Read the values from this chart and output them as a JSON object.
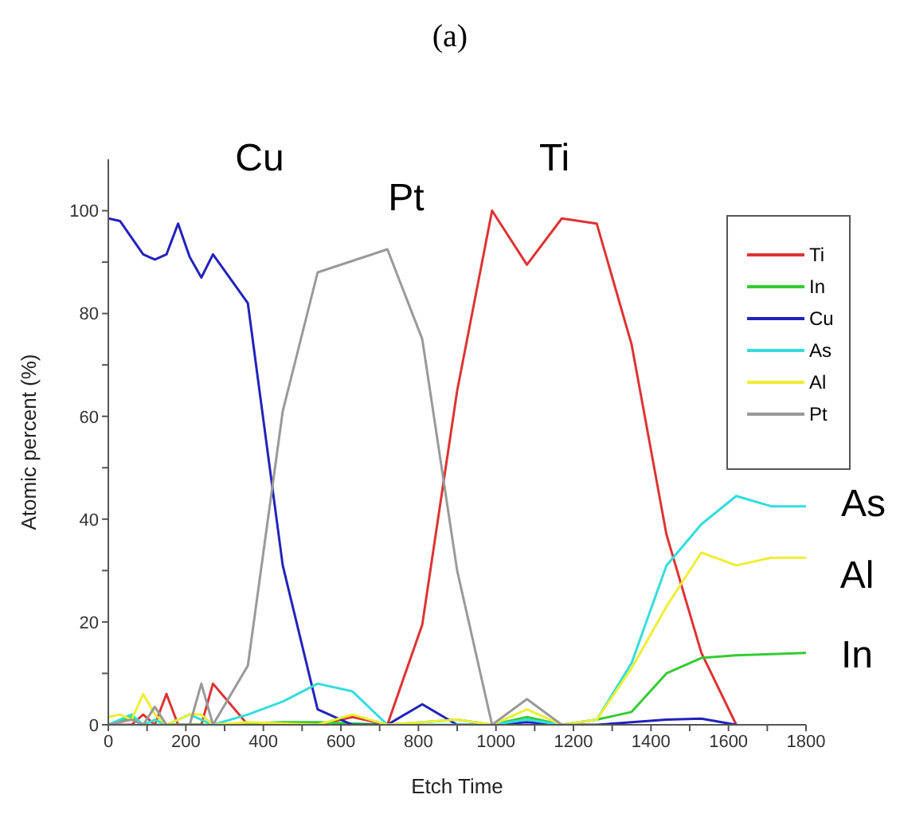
{
  "chart_data": {
    "type": "line",
    "title": "(a)",
    "xlabel": "Etch Time",
    "ylabel": "Atomic percent (%)",
    "xlim": [
      0,
      1800
    ],
    "xticks": [
      0,
      {
        "value": 100,
        "label": null
      },
      200,
      {
        "value": 300,
        "label": null
      },
      400,
      {
        "value": 500,
        "label": null
      },
      600,
      {
        "value": 700,
        "label": null
      },
      800,
      {
        "value": 900,
        "label": null
      },
      1000,
      {
        "value": 1100,
        "label": null
      },
      1200,
      {
        "value": 1300,
        "label": null
      },
      1400,
      {
        "value": 1500,
        "label": null
      },
      1600,
      {
        "value": 1700,
        "label": null
      },
      1800
    ],
    "ylim": [
      0,
      110
    ],
    "yticks": [
      0,
      {
        "value": 10,
        "label": null
      },
      20,
      {
        "value": 30,
        "label": null
      },
      40,
      {
        "value": 50,
        "label": null
      },
      60,
      {
        "value": 70,
        "label": null
      },
      80,
      {
        "value": 90,
        "label": null
      },
      100
    ],
    "grid": false,
    "legend": "top right",
    "marker": "none",
    "line_style": "solid",
    "series": [
      {
        "name": "Ti",
        "color": "#dd3333",
        "x": [
          0,
          60,
          90,
          120,
          150,
          180,
          240,
          270,
          360,
          540,
          630,
          720,
          810,
          900,
          990,
          1080,
          1170,
          1260,
          1350,
          1440,
          1530,
          1620
        ],
        "values": [
          0,
          0,
          2,
          0,
          6,
          0,
          0,
          8,
          0,
          0,
          1.5,
          0,
          19.5,
          65,
          100,
          89.5,
          98.5,
          97.5,
          74,
          37,
          14,
          0
        ]
      },
      {
        "name": "In",
        "color": "#33cc33",
        "x": [
          0,
          60,
          90,
          180,
          270,
          450,
          540,
          720,
          900,
          990,
          1080,
          1170,
          1260,
          1350,
          1440,
          1530,
          1620,
          1800
        ],
        "values": [
          0,
          1.5,
          0,
          0,
          0,
          0.5,
          0.5,
          0,
          1,
          0,
          1.5,
          0,
          1,
          2.5,
          10,
          13,
          13.5,
          14
        ]
      },
      {
        "name": "Cu",
        "color": "#2222bb",
        "x": [
          0,
          30,
          90,
          120,
          150,
          180,
          210,
          240,
          270,
          360,
          450,
          540,
          600,
          630,
          720,
          810,
          900,
          990,
          1080,
          1170,
          1260,
          1350,
          1440,
          1530,
          1620
        ],
        "values": [
          98.5,
          98,
          91.5,
          90.5,
          91.5,
          97.5,
          91,
          87,
          91.5,
          82,
          31,
          3,
          1,
          0,
          0,
          4,
          0,
          0,
          0.5,
          0,
          0,
          0.5,
          1,
          1.2,
          0
        ]
      },
      {
        "name": "As",
        "color": "#33dddd",
        "x": [
          0,
          60,
          90,
          120,
          150,
          210,
          240,
          270,
          360,
          450,
          540,
          630,
          720,
          810,
          900,
          990,
          1080,
          1170,
          1260,
          1350,
          1440,
          1530,
          1620,
          1710,
          1800
        ],
        "values": [
          0,
          2,
          0,
          1,
          0,
          2,
          1,
          0,
          2,
          4.5,
          8,
          6.5,
          0,
          0,
          0,
          0,
          1,
          0,
          1,
          12,
          31,
          39,
          44.5,
          42.5,
          42.5
        ]
      },
      {
        "name": "Al",
        "color": "#eeee33",
        "x": [
          0,
          30,
          60,
          90,
          120,
          150,
          210,
          240,
          270,
          360,
          540,
          630,
          720,
          810,
          900,
          990,
          1080,
          1170,
          1260,
          1350,
          1440,
          1530,
          1620,
          1710,
          1800
        ],
        "values": [
          1.5,
          2,
          1,
          6,
          2,
          0,
          2,
          2,
          0,
          0.5,
          0,
          2,
          0,
          0.5,
          1,
          0,
          3,
          0,
          1,
          11,
          23,
          33.5,
          31,
          32.5,
          32.5
        ]
      },
      {
        "name": "Pt",
        "color": "#999999",
        "x": [
          0,
          60,
          90,
          120,
          150,
          210,
          240,
          270,
          360,
          450,
          540,
          720,
          810,
          900,
          990,
          1080,
          1170,
          1260
        ],
        "values": [
          0,
          1,
          0,
          3.5,
          0,
          0,
          8,
          0,
          11.5,
          61,
          88,
          92.5,
          75,
          30,
          0,
          5,
          0,
          0
        ]
      }
    ],
    "annotations": [
      "Cu",
      "Pt",
      "Ti",
      "As",
      "Al",
      "In"
    ]
  }
}
